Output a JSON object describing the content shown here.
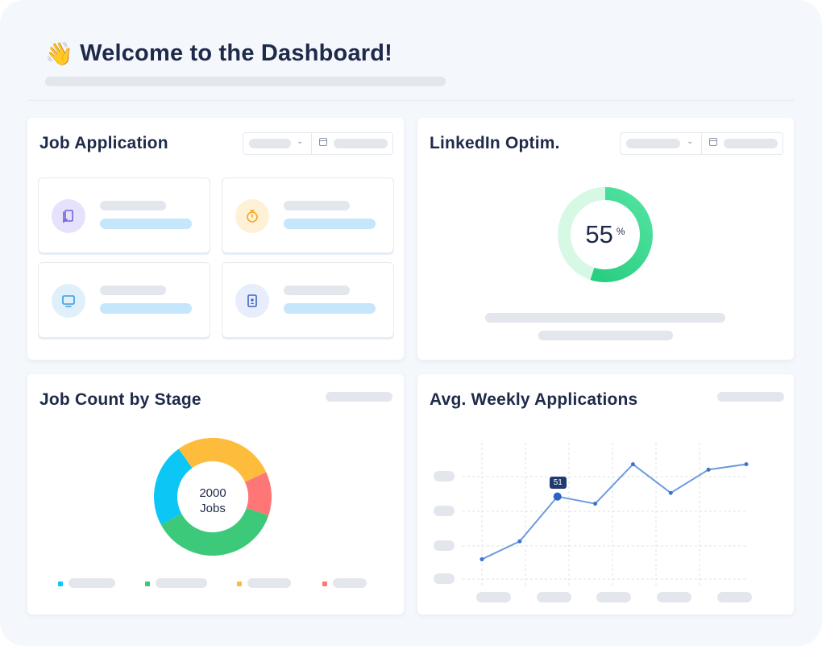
{
  "header": {
    "wave_emoji": "👋",
    "title": "Welcome to the Dashboard!"
  },
  "cards": {
    "job_application": {
      "title": "Job Application",
      "tiles": [
        {
          "icon": "bookmarks-icon",
          "icon_bg": "#e6e2fb",
          "icon_color": "#7062d8"
        },
        {
          "icon": "stopwatch-icon",
          "icon_bg": "#fff1d6",
          "icon_color": "#f5a623"
        },
        {
          "icon": "monitor-icon",
          "icon_bg": "#dff0fb",
          "icon_color": "#3b9ad9"
        },
        {
          "icon": "contact-file-icon",
          "icon_bg": "#e7edfb",
          "icon_color": "#3f63c7"
        }
      ]
    },
    "linkedin": {
      "title": "LinkedIn Optim.",
      "percent": 55,
      "percent_value": "55",
      "percent_sign": "%",
      "colors": {
        "track": "#d8f8e6",
        "fill": "#1ec97a"
      }
    },
    "job_count": {
      "title": "Job Count by Stage",
      "center_value": "2000",
      "center_unit": "Jobs"
    },
    "weekly": {
      "title": "Avg. Weekly Applications",
      "tooltip": "51"
    }
  },
  "chart_data": [
    {
      "type": "pie",
      "title": "Job Count by Stage",
      "slices": [
        {
          "color": "#fdbc3c",
          "fraction": 0.28
        },
        {
          "color": "#ff7676",
          "fraction": 0.12
        },
        {
          "color": "#3dc97a",
          "fraction": 0.37
        },
        {
          "color": "#0cc6f5",
          "fraction": 0.23
        }
      ]
    },
    {
      "type": "line",
      "title": "Avg. Weekly Applications",
      "values": [
        16,
        26,
        51,
        47,
        69,
        53,
        66,
        69
      ],
      "ylim": [
        0,
        81
      ],
      "highlight_index": 2,
      "line_color": "#6a9bde",
      "grid": true
    }
  ]
}
